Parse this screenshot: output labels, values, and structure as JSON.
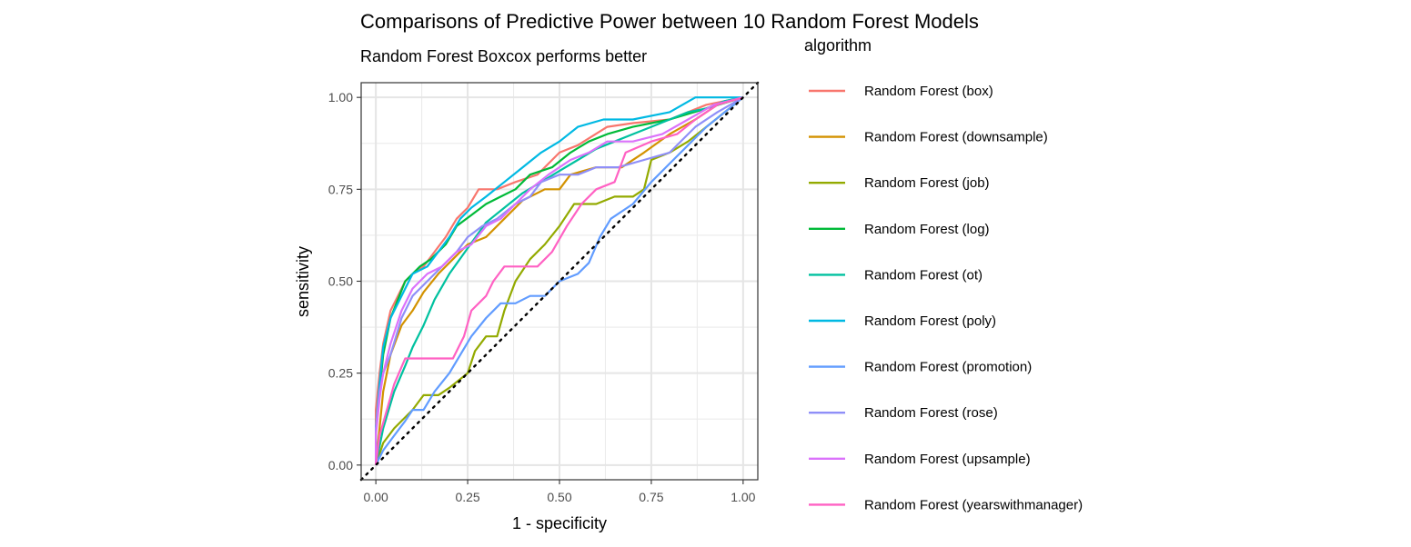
{
  "chart_data": {
    "type": "line",
    "title": "Comparisons of Predictive Power between 10 Random Forest Models",
    "subtitle": "Random Forest Boxcox performs better",
    "xlabel": "1 - specificity",
    "ylabel": "sensitivity",
    "xlim": [
      -0.04,
      1.04
    ],
    "ylim": [
      -0.04,
      1.04
    ],
    "x_ticks": [
      "0.00",
      "0.25",
      "0.50",
      "0.75",
      "1.00"
    ],
    "y_ticks": [
      "0.00",
      "0.25",
      "0.50",
      "0.75",
      "1.00"
    ],
    "grid": true,
    "reference_line": {
      "style": "dotted",
      "from": [
        0,
        0
      ],
      "to": [
        1,
        1
      ]
    },
    "legend": {
      "title": "algorithm",
      "position": "right"
    },
    "series": [
      {
        "name": "Random Forest (box)",
        "color": "#F8766D",
        "points": [
          [
            0,
            0
          ],
          [
            0,
            0.15
          ],
          [
            0.01,
            0.25
          ],
          [
            0.02,
            0.33
          ],
          [
            0.04,
            0.42
          ],
          [
            0.06,
            0.46
          ],
          [
            0.08,
            0.5
          ],
          [
            0.1,
            0.52
          ],
          [
            0.13,
            0.54
          ],
          [
            0.16,
            0.58
          ],
          [
            0.19,
            0.62
          ],
          [
            0.22,
            0.67
          ],
          [
            0.25,
            0.7
          ],
          [
            0.28,
            0.75
          ],
          [
            0.33,
            0.75
          ],
          [
            0.38,
            0.77
          ],
          [
            0.44,
            0.79
          ],
          [
            0.5,
            0.85
          ],
          [
            0.55,
            0.87
          ],
          [
            0.63,
            0.92
          ],
          [
            0.7,
            0.93
          ],
          [
            0.8,
            0.94
          ],
          [
            0.9,
            0.98
          ],
          [
            1.0,
            1.0
          ]
        ]
      },
      {
        "name": "Random Forest (downsample)",
        "color": "#D39200",
        "points": [
          [
            0,
            0
          ],
          [
            0.01,
            0.1
          ],
          [
            0.02,
            0.2
          ],
          [
            0.04,
            0.3
          ],
          [
            0.07,
            0.38
          ],
          [
            0.1,
            0.42
          ],
          [
            0.13,
            0.47
          ],
          [
            0.17,
            0.52
          ],
          [
            0.21,
            0.56
          ],
          [
            0.25,
            0.6
          ],
          [
            0.3,
            0.62
          ],
          [
            0.35,
            0.67
          ],
          [
            0.4,
            0.72
          ],
          [
            0.46,
            0.75
          ],
          [
            0.5,
            0.75
          ],
          [
            0.53,
            0.79
          ],
          [
            0.6,
            0.81
          ],
          [
            0.67,
            0.81
          ],
          [
            0.73,
            0.85
          ],
          [
            0.8,
            0.9
          ],
          [
            0.87,
            0.94
          ],
          [
            0.93,
            0.98
          ],
          [
            1.0,
            1.0
          ]
        ]
      },
      {
        "name": "Random Forest (job)",
        "color": "#93AA00",
        "points": [
          [
            0,
            0
          ],
          [
            0.02,
            0.06
          ],
          [
            0.05,
            0.1
          ],
          [
            0.1,
            0.15
          ],
          [
            0.13,
            0.19
          ],
          [
            0.17,
            0.19
          ],
          [
            0.2,
            0.21
          ],
          [
            0.25,
            0.25
          ],
          [
            0.27,
            0.31
          ],
          [
            0.3,
            0.35
          ],
          [
            0.33,
            0.35
          ],
          [
            0.35,
            0.42
          ],
          [
            0.38,
            0.5
          ],
          [
            0.42,
            0.56
          ],
          [
            0.46,
            0.6
          ],
          [
            0.5,
            0.65
          ],
          [
            0.54,
            0.71
          ],
          [
            0.6,
            0.71
          ],
          [
            0.65,
            0.73
          ],
          [
            0.7,
            0.73
          ],
          [
            0.73,
            0.75
          ],
          [
            0.75,
            0.83
          ],
          [
            0.8,
            0.85
          ],
          [
            0.85,
            0.88
          ],
          [
            0.9,
            0.92
          ],
          [
            0.95,
            0.96
          ],
          [
            1.0,
            1.0
          ]
        ]
      },
      {
        "name": "Random Forest (log)",
        "color": "#00BA38",
        "points": [
          [
            0,
            0
          ],
          [
            0,
            0.1
          ],
          [
            0.01,
            0.2
          ],
          [
            0.02,
            0.3
          ],
          [
            0.04,
            0.4
          ],
          [
            0.06,
            0.45
          ],
          [
            0.08,
            0.5
          ],
          [
            0.12,
            0.54
          ],
          [
            0.15,
            0.56
          ],
          [
            0.19,
            0.6
          ],
          [
            0.22,
            0.65
          ],
          [
            0.26,
            0.68
          ],
          [
            0.3,
            0.71
          ],
          [
            0.34,
            0.73
          ],
          [
            0.38,
            0.75
          ],
          [
            0.42,
            0.79
          ],
          [
            0.48,
            0.81
          ],
          [
            0.53,
            0.85
          ],
          [
            0.58,
            0.88
          ],
          [
            0.63,
            0.9
          ],
          [
            0.7,
            0.92
          ],
          [
            0.8,
            0.94
          ],
          [
            0.9,
            0.97
          ],
          [
            1.0,
            1.0
          ]
        ]
      },
      {
        "name": "Random Forest (ot)",
        "color": "#00C19F",
        "points": [
          [
            0,
            0
          ],
          [
            0.02,
            0.1
          ],
          [
            0.05,
            0.2
          ],
          [
            0.08,
            0.27
          ],
          [
            0.1,
            0.32
          ],
          [
            0.13,
            0.38
          ],
          [
            0.16,
            0.45
          ],
          [
            0.2,
            0.52
          ],
          [
            0.25,
            0.59
          ],
          [
            0.3,
            0.66
          ],
          [
            0.35,
            0.7
          ],
          [
            0.4,
            0.74
          ],
          [
            0.45,
            0.77
          ],
          [
            0.5,
            0.8
          ],
          [
            0.55,
            0.83
          ],
          [
            0.6,
            0.86
          ],
          [
            0.65,
            0.88
          ],
          [
            0.7,
            0.9
          ],
          [
            0.75,
            0.92
          ],
          [
            0.8,
            0.94
          ],
          [
            0.85,
            0.96
          ],
          [
            0.9,
            0.97
          ],
          [
            0.95,
            0.99
          ],
          [
            1.0,
            1.0
          ]
        ]
      },
      {
        "name": "Random Forest (poly)",
        "color": "#00B9E3",
        "points": [
          [
            0,
            0
          ],
          [
            0,
            0.1
          ],
          [
            0.01,
            0.22
          ],
          [
            0.02,
            0.32
          ],
          [
            0.04,
            0.4
          ],
          [
            0.06,
            0.44
          ],
          [
            0.08,
            0.48
          ],
          [
            0.1,
            0.52
          ],
          [
            0.14,
            0.54
          ],
          [
            0.17,
            0.58
          ],
          [
            0.2,
            0.62
          ],
          [
            0.23,
            0.67
          ],
          [
            0.26,
            0.7
          ],
          [
            0.3,
            0.73
          ],
          [
            0.35,
            0.77
          ],
          [
            0.4,
            0.81
          ],
          [
            0.45,
            0.85
          ],
          [
            0.5,
            0.88
          ],
          [
            0.55,
            0.92
          ],
          [
            0.62,
            0.94
          ],
          [
            0.7,
            0.94
          ],
          [
            0.8,
            0.96
          ],
          [
            0.87,
            1.0
          ],
          [
            1.0,
            1.0
          ]
        ]
      },
      {
        "name": "Random Forest (promotion)",
        "color": "#619CFF",
        "points": [
          [
            0,
            0
          ],
          [
            0.02,
            0.04
          ],
          [
            0.05,
            0.08
          ],
          [
            0.08,
            0.12
          ],
          [
            0.1,
            0.15
          ],
          [
            0.13,
            0.15
          ],
          [
            0.16,
            0.2
          ],
          [
            0.2,
            0.25
          ],
          [
            0.23,
            0.3
          ],
          [
            0.26,
            0.35
          ],
          [
            0.3,
            0.4
          ],
          [
            0.34,
            0.44
          ],
          [
            0.38,
            0.44
          ],
          [
            0.42,
            0.46
          ],
          [
            0.46,
            0.46
          ],
          [
            0.5,
            0.5
          ],
          [
            0.55,
            0.52
          ],
          [
            0.58,
            0.55
          ],
          [
            0.61,
            0.62
          ],
          [
            0.64,
            0.67
          ],
          [
            0.7,
            0.71
          ],
          [
            0.75,
            0.77
          ],
          [
            0.8,
            0.82
          ],
          [
            0.85,
            0.87
          ],
          [
            0.9,
            0.92
          ],
          [
            0.95,
            0.96
          ],
          [
            1.0,
            1.0
          ]
        ]
      },
      {
        "name": "Random Forest (rose)",
        "color": "#8F8FF8",
        "points": [
          [
            0,
            0
          ],
          [
            0,
            0.1
          ],
          [
            0.01,
            0.2
          ],
          [
            0.02,
            0.25
          ],
          [
            0.04,
            0.3
          ],
          [
            0.07,
            0.4
          ],
          [
            0.1,
            0.46
          ],
          [
            0.14,
            0.5
          ],
          [
            0.18,
            0.54
          ],
          [
            0.22,
            0.58
          ],
          [
            0.25,
            0.62
          ],
          [
            0.29,
            0.65
          ],
          [
            0.33,
            0.67
          ],
          [
            0.38,
            0.71
          ],
          [
            0.42,
            0.73
          ],
          [
            0.45,
            0.77
          ],
          [
            0.5,
            0.79
          ],
          [
            0.55,
            0.79
          ],
          [
            0.6,
            0.81
          ],
          [
            0.66,
            0.81
          ],
          [
            0.73,
            0.83
          ],
          [
            0.8,
            0.85
          ],
          [
            0.87,
            0.92
          ],
          [
            0.93,
            0.96
          ],
          [
            1.0,
            1.0
          ]
        ]
      },
      {
        "name": "Random Forest (upsample)",
        "color": "#DB72FB",
        "points": [
          [
            0,
            0
          ],
          [
            0,
            0.08
          ],
          [
            0.01,
            0.18
          ],
          [
            0.02,
            0.25
          ],
          [
            0.04,
            0.33
          ],
          [
            0.07,
            0.42
          ],
          [
            0.1,
            0.48
          ],
          [
            0.14,
            0.52
          ],
          [
            0.18,
            0.54
          ],
          [
            0.22,
            0.58
          ],
          [
            0.26,
            0.6
          ],
          [
            0.3,
            0.65
          ],
          [
            0.34,
            0.67
          ],
          [
            0.38,
            0.71
          ],
          [
            0.42,
            0.75
          ],
          [
            0.47,
            0.79
          ],
          [
            0.53,
            0.83
          ],
          [
            0.58,
            0.85
          ],
          [
            0.63,
            0.88
          ],
          [
            0.7,
            0.88
          ],
          [
            0.78,
            0.9
          ],
          [
            0.85,
            0.94
          ],
          [
            0.92,
            0.98
          ],
          [
            1.0,
            1.0
          ]
        ]
      },
      {
        "name": "Random Forest (yearswithmanager)",
        "color": "#FF61C3",
        "points": [
          [
            0,
            0
          ],
          [
            0.01,
            0.08
          ],
          [
            0.03,
            0.15
          ],
          [
            0.05,
            0.22
          ],
          [
            0.08,
            0.29
          ],
          [
            0.13,
            0.29
          ],
          [
            0.17,
            0.29
          ],
          [
            0.21,
            0.29
          ],
          [
            0.24,
            0.35
          ],
          [
            0.26,
            0.42
          ],
          [
            0.3,
            0.46
          ],
          [
            0.32,
            0.5
          ],
          [
            0.35,
            0.54
          ],
          [
            0.4,
            0.54
          ],
          [
            0.44,
            0.54
          ],
          [
            0.48,
            0.58
          ],
          [
            0.52,
            0.65
          ],
          [
            0.56,
            0.71
          ],
          [
            0.6,
            0.75
          ],
          [
            0.65,
            0.77
          ],
          [
            0.68,
            0.85
          ],
          [
            0.75,
            0.88
          ],
          [
            0.82,
            0.9
          ],
          [
            0.87,
            0.94
          ],
          [
            0.93,
            0.98
          ],
          [
            1.0,
            1.0
          ]
        ]
      }
    ]
  }
}
